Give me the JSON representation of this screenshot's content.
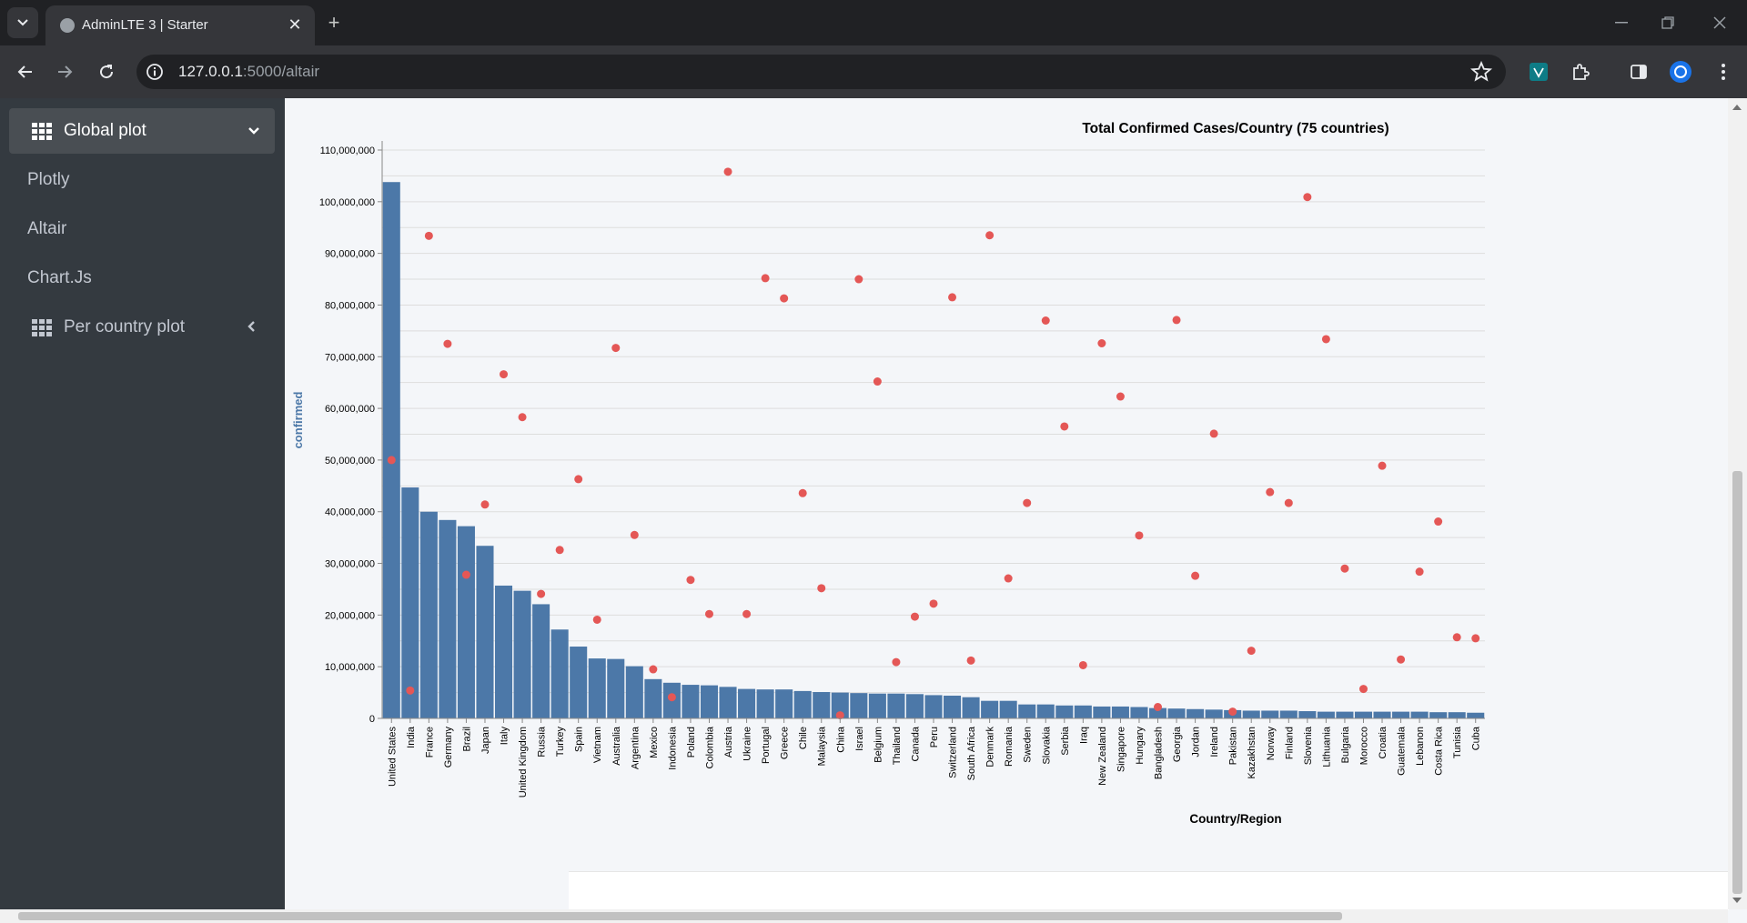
{
  "browser": {
    "tab_title": "AdminLTE 3 | Starter",
    "url_host": "127.0.0.1",
    "url_path": ":5000/altair",
    "new_tab": "+",
    "close": "✕"
  },
  "sidebar": {
    "group_open": "Global plot",
    "items": [
      "Plotly",
      "Altair",
      "Chart.Js"
    ],
    "group_closed": "Per country plot"
  },
  "colors": {
    "bar": "#4c78a8",
    "point": "#e45756",
    "sidebar_bg": "#343a40",
    "accent": "#1a73e8"
  },
  "chart_data": {
    "type": "bar",
    "title": "Total Confirmed Cases/Country (75 countries)",
    "xlabel": "Country/Region",
    "ylabel": "confirmed",
    "ylim": [
      0,
      110000000
    ],
    "yticks": [
      0,
      10000000,
      20000000,
      30000000,
      40000000,
      50000000,
      60000000,
      70000000,
      80000000,
      90000000,
      100000000,
      110000000
    ],
    "ytick_labels": [
      "0",
      "10,000,000",
      "20,000,000",
      "30,000,000",
      "40,000,000",
      "50,000,000",
      "60,000,000",
      "70,000,000",
      "80,000,000",
      "90,000,000",
      "100,000,000",
      "110,000,000"
    ],
    "grid": true,
    "categories": [
      "United States",
      "India",
      "France",
      "Germany",
      "Brazil",
      "Japan",
      "Italy",
      "United Kingdom",
      "Russia",
      "Turkey",
      "Spain",
      "Vietnam",
      "Australia",
      "Argentina",
      "Mexico",
      "Indonesia",
      "Poland",
      "Colombia",
      "Austria",
      "Ukraine",
      "Portugal",
      "Greece",
      "Chile",
      "Malaysia",
      "China",
      "Israel",
      "Belgium",
      "Thailand",
      "Canada",
      "Peru",
      "Switzerland",
      "South Africa",
      "Denmark",
      "Romania",
      "Sweden",
      "Slovakia",
      "Serbia",
      "Iraq",
      "New Zealand",
      "Singapore",
      "Hungary",
      "Bangladesh",
      "Georgia",
      "Jordan",
      "Ireland",
      "Pakistan",
      "Kazakhstan",
      "Norway",
      "Finland",
      "Slovenia",
      "Lithuania",
      "Bulgaria",
      "Morocco",
      "Croatia",
      "Guatemala",
      "Lebanon",
      "Costa Rica",
      "Tunisia",
      "Cuba"
    ],
    "series": [
      {
        "type": "bar",
        "values": [
          103800000,
          44700000,
          40000000,
          38400000,
          37200000,
          33400000,
          25700000,
          24700000,
          22100000,
          17200000,
          13900000,
          11600000,
          11500000,
          10100000,
          7600000,
          6900000,
          6500000,
          6400000,
          6100000,
          5700000,
          5600000,
          5600000,
          5300000,
          5100000,
          5000000,
          4900000,
          4800000,
          4800000,
          4700000,
          4500000,
          4400000,
          4100000,
          3400000,
          3400000,
          2700000,
          2700000,
          2500000,
          2500000,
          2300000,
          2300000,
          2200000,
          2000000,
          1900000,
          1800000,
          1700000,
          1600000,
          1500000,
          1500000,
          1500000,
          1400000,
          1300000,
          1300000,
          1300000,
          1300000,
          1300000,
          1300000,
          1200000,
          1200000,
          1100000
        ]
      },
      {
        "type": "scatter",
        "values": [
          50000000,
          5400000,
          93400000,
          72500000,
          27800000,
          41400000,
          66600000,
          58300000,
          24100000,
          32600000,
          46300000,
          19100000,
          71700000,
          35500000,
          9500000,
          4100000,
          26800000,
          20200000,
          105800000,
          20200000,
          85200000,
          81300000,
          43600000,
          25200000,
          600000,
          85000000,
          65200000,
          10900000,
          19700000,
          22200000,
          81500000,
          11200000,
          93500000,
          27100000,
          41700000,
          77000000,
          56500000,
          10300000,
          72600000,
          62300000,
          35400000,
          2200000,
          77100000,
          27600000,
          55100000,
          1300000,
          13100000,
          43800000,
          41700000,
          100900000,
          73400000,
          29000000,
          5700000,
          48900000,
          11400000,
          28400000,
          38100000,
          15700000,
          15500000
        ]
      }
    ]
  }
}
